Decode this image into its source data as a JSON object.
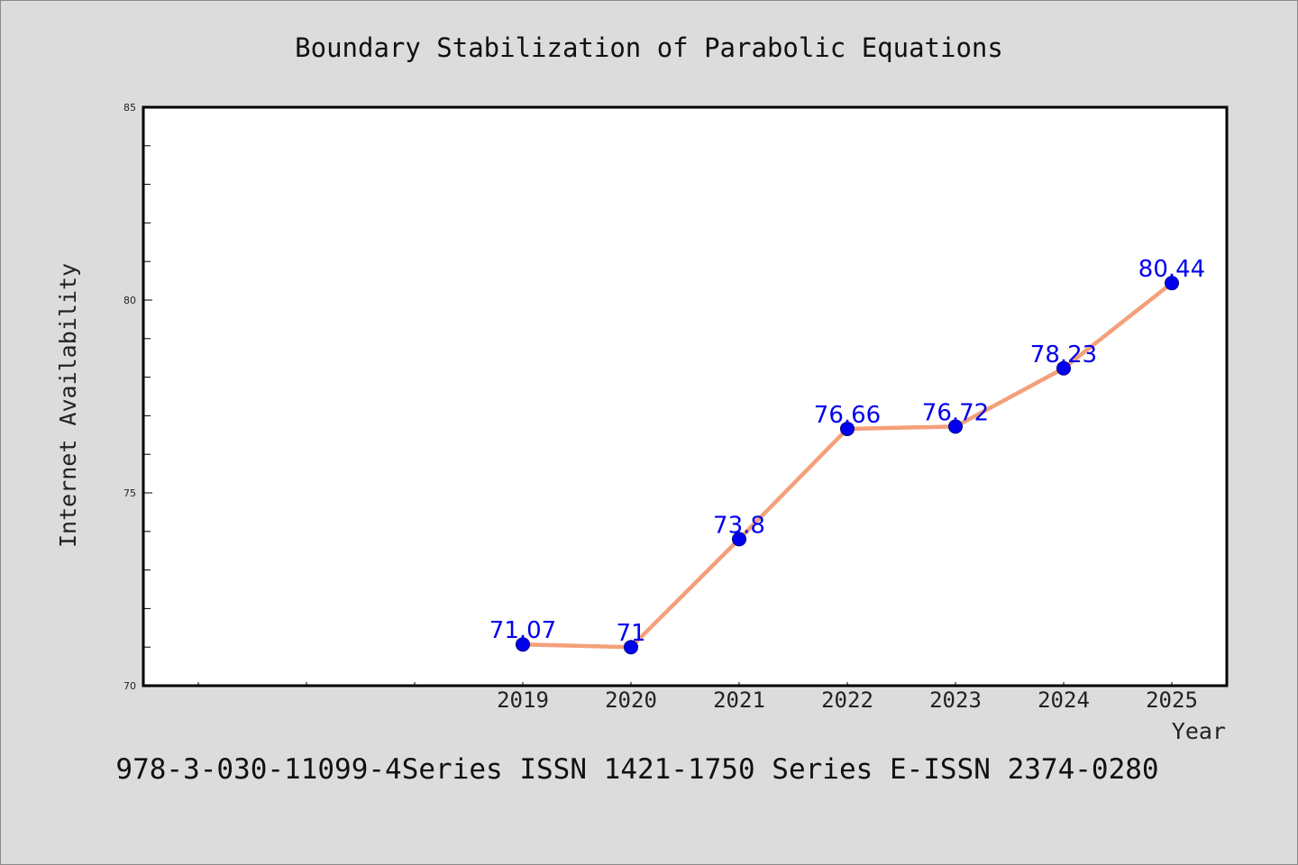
{
  "chart_data": {
    "type": "line",
    "title": "Boundary Stabilization of Parabolic Equations",
    "xlabel": "Year",
    "ylabel": "Internet Availability",
    "categories": [
      "2019",
      "2020",
      "2021",
      "2022",
      "2023",
      "2024",
      "2025"
    ],
    "series": [
      {
        "values": [
          71.07,
          71,
          73.8,
          76.66,
          76.72,
          78.23,
          80.44
        ],
        "data_labels": [
          "71.07",
          "71",
          "73.8",
          "76.66",
          "76.72",
          "78.23",
          "80.44"
        ]
      }
    ],
    "ylim": [
      70,
      85
    ],
    "yticks": [
      "70",
      "75",
      "80",
      "85"
    ],
    "grid": false,
    "legend": "none"
  },
  "footer_text": "978-3-030-11099-4Series ISSN 1421-1750 Series E-ISSN 2374-0280",
  "colors": {
    "background": "#dcdcdc",
    "plot_background": "#ffffff",
    "line": "#f4a07a",
    "marker": "#0000ee",
    "data_label": "#0000ee"
  }
}
